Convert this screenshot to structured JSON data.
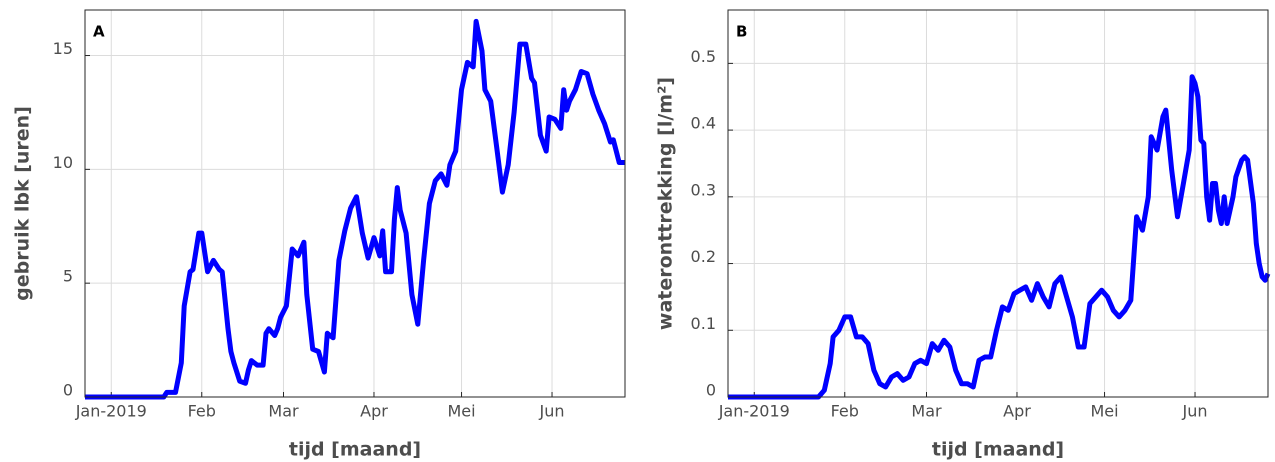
{
  "chart_data": [
    {
      "type": "line",
      "panel": "A",
      "xlabel": "tijd [maand]",
      "ylabel": "gebruik lbk [uren]",
      "xlim": [
        -9,
        176
      ],
      "ylim": [
        0,
        17
      ],
      "grid": true,
      "xticks": [
        {
          "value": 0,
          "label": "Jan-2019"
        },
        {
          "value": 31,
          "label": "Feb"
        },
        {
          "value": 59,
          "label": "Mar"
        },
        {
          "value": 90,
          "label": "Apr"
        },
        {
          "value": 120,
          "label": "Mei"
        },
        {
          "value": 151,
          "label": "Jun"
        }
      ],
      "yticks": [
        0,
        5,
        10,
        15
      ],
      "x": [
        -9,
        0,
        10,
        18,
        19,
        22,
        24,
        25,
        27,
        28,
        30,
        31,
        33,
        35,
        37,
        38,
        40,
        41,
        42,
        44,
        46,
        47,
        48,
        50,
        52,
        53,
        54,
        56,
        57,
        58,
        60,
        62,
        64,
        66,
        67,
        69,
        71,
        73,
        74,
        76,
        78,
        80,
        82,
        84,
        86,
        88,
        90,
        92,
        93,
        94,
        96,
        97,
        98,
        99,
        101,
        103,
        105,
        107,
        109,
        111,
        113,
        115,
        116,
        118,
        120,
        122,
        124,
        125,
        127,
        128,
        130,
        132,
        134,
        136,
        138,
        140,
        142,
        144,
        145,
        147,
        149,
        150,
        152,
        154,
        155,
        156,
        157,
        159,
        161,
        163,
        165,
        167,
        169,
        171,
        172,
        174,
        176
      ],
      "series": [
        {
          "color": "#0000ff",
          "values": [
            0,
            0,
            0,
            0,
            0.2,
            0.2,
            1.5,
            4,
            5.5,
            5.6,
            7.2,
            7.2,
            5.5,
            6,
            5.6,
            5.5,
            3,
            2,
            1.5,
            0.7,
            0.6,
            1.2,
            1.6,
            1.4,
            1.4,
            2.8,
            3,
            2.7,
            3,
            3.5,
            4,
            6.5,
            6.2,
            6.8,
            4.5,
            2.1,
            2,
            1.1,
            2.8,
            2.6,
            6,
            7.3,
            8.3,
            8.8,
            7.2,
            6.1,
            7,
            6.2,
            7.3,
            5.5,
            5.5,
            7.8,
            9.2,
            8.2,
            7.2,
            4.5,
            3.2,
            6,
            8.5,
            9.5,
            9.8,
            9.3,
            10.2,
            10.8,
            13.5,
            14.7,
            14.5,
            16.5,
            15.2,
            13.5,
            13,
            11,
            9,
            10.2,
            12.5,
            15.5,
            15.5,
            14,
            13.8,
            11.5,
            10.8,
            12.3,
            12.2,
            11.8,
            13.5,
            12.6,
            13,
            13.5,
            14.3,
            14.2,
            13.3,
            12.6,
            12,
            11.2,
            11.3,
            10.3,
            10.3
          ]
        }
      ]
    },
    {
      "type": "line",
      "panel": "B",
      "xlabel": "tijd [maand]",
      "ylabel": "wateronttrekking [l/m²]",
      "xlim": [
        -9,
        176
      ],
      "ylim": [
        0,
        0.58
      ],
      "grid": true,
      "xticks": [
        {
          "value": 0,
          "label": "Jan-2019"
        },
        {
          "value": 31,
          "label": "Feb"
        },
        {
          "value": 59,
          "label": "Mar"
        },
        {
          "value": 90,
          "label": "Apr"
        },
        {
          "value": 120,
          "label": "Mei"
        },
        {
          "value": 151,
          "label": "Jun"
        }
      ],
      "yticks": [
        0,
        0.1,
        0.2,
        0.3,
        0.4,
        0.5
      ],
      "x": [
        -9,
        0,
        10,
        22,
        24,
        26,
        27,
        29,
        31,
        33,
        35,
        37,
        39,
        41,
        43,
        45,
        47,
        49,
        51,
        53,
        55,
        57,
        59,
        61,
        63,
        65,
        67,
        69,
        71,
        73,
        75,
        77,
        79,
        81,
        83,
        85,
        87,
        89,
        91,
        93,
        95,
        97,
        99,
        101,
        103,
        105,
        107,
        109,
        111,
        113,
        115,
        117,
        119,
        121,
        123,
        125,
        127,
        129,
        131,
        133,
        135,
        136,
        138,
        140,
        141,
        143,
        145,
        147,
        149,
        150,
        151,
        152,
        153,
        154,
        155,
        156,
        157,
        158,
        159,
        160,
        161,
        162,
        164,
        165,
        167,
        168,
        169,
        171,
        172,
        173,
        174,
        175,
        176
      ],
      "series": [
        {
          "color": "#0000ff",
          "values": [
            0,
            0,
            0,
            0,
            0.01,
            0.05,
            0.09,
            0.1,
            0.12,
            0.12,
            0.09,
            0.09,
            0.08,
            0.04,
            0.02,
            0.015,
            0.03,
            0.035,
            0.025,
            0.03,
            0.05,
            0.055,
            0.05,
            0.08,
            0.07,
            0.085,
            0.075,
            0.04,
            0.02,
            0.02,
            0.015,
            0.055,
            0.06,
            0.06,
            0.1,
            0.135,
            0.13,
            0.155,
            0.16,
            0.165,
            0.145,
            0.17,
            0.15,
            0.135,
            0.17,
            0.18,
            0.15,
            0.12,
            0.075,
            0.075,
            0.14,
            0.15,
            0.16,
            0.15,
            0.13,
            0.12,
            0.13,
            0.145,
            0.27,
            0.25,
            0.3,
            0.39,
            0.37,
            0.42,
            0.43,
            0.34,
            0.27,
            0.32,
            0.37,
            0.48,
            0.47,
            0.45,
            0.385,
            0.38,
            0.3,
            0.265,
            0.32,
            0.32,
            0.28,
            0.26,
            0.3,
            0.26,
            0.3,
            0.33,
            0.355,
            0.36,
            0.355,
            0.29,
            0.23,
            0.2,
            0.18,
            0.175,
            0.185
          ]
        }
      ]
    }
  ]
}
